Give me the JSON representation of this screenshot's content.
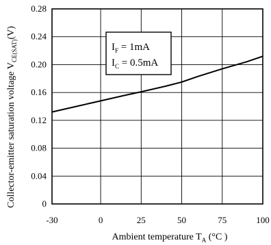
{
  "chart_data": {
    "type": "line",
    "xlabel": "Ambient temperature T",
    "xlabel_sub": "A",
    "xlabel_unit": " (°C )",
    "ylabel": "Collector-emitter saturation voltage V",
    "ylabel_sub": "CE(SAT)",
    "ylabel_unit": "(V)",
    "xlim": [
      -30,
      100
    ],
    "ylim": [
      0,
      0.28
    ],
    "xticks": [
      -30,
      0,
      25,
      50,
      75,
      100
    ],
    "xtick_labels": [
      "-30",
      "0",
      "25",
      "50",
      "75",
      "100"
    ],
    "yticks": [
      0,
      0.04,
      0.08,
      0.12,
      0.16,
      0.2,
      0.24,
      0.28
    ],
    "ytick_labels": [
      "0",
      "0.04",
      "0.08",
      "0.12",
      "0.16",
      "0.20",
      "0.24",
      "0.28"
    ],
    "grid": true,
    "series": [
      {
        "x": [
          -30,
          -15,
          0,
          15,
          25,
          40,
          50,
          60,
          75,
          90,
          100
        ],
        "y": [
          0.132,
          0.14,
          0.148,
          0.156,
          0.161,
          0.169,
          0.175,
          0.183,
          0.194,
          0.204,
          0.212
        ]
      }
    ],
    "annotation": {
      "line1_main": "I",
      "line1_sub": "F",
      "line1_value": " = 1mA",
      "line2_main": "I",
      "line2_sub": "C",
      "line2_value": " = 0.5mA"
    }
  }
}
